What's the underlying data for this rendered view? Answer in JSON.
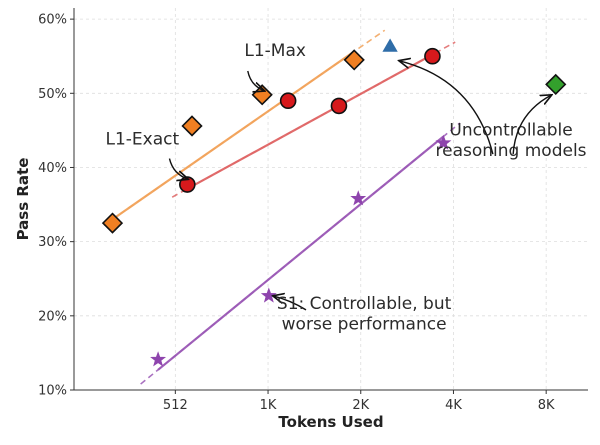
{
  "chart_data": {
    "type": "scatter",
    "xlabel": "Tokens Used",
    "ylabel": "Pass Rate",
    "x_scale": "log2",
    "xlim": [
      240,
      11200
    ],
    "ylim": [
      10,
      61.5
    ],
    "x_ticks": [
      {
        "value": 512,
        "label": "512"
      },
      {
        "value": 1024,
        "label": "1K"
      },
      {
        "value": 2048,
        "label": "2K"
      },
      {
        "value": 4096,
        "label": "4K"
      },
      {
        "value": 8192,
        "label": "8K"
      }
    ],
    "y_ticks": [
      {
        "value": 10,
        "label": "10%"
      },
      {
        "value": 20,
        "label": "20%"
      },
      {
        "value": 30,
        "label": "30%"
      },
      {
        "value": 40,
        "label": "40%"
      },
      {
        "value": 50,
        "label": "50%"
      },
      {
        "value": 60,
        "label": "60%"
      }
    ],
    "grid": true,
    "series": [
      {
        "name": "L1-Max",
        "marker": "diamond",
        "color": "#f07f22",
        "line_color": "#f2a35a",
        "points": [
          [
            320,
            32.5
          ],
          [
            580,
            45.6
          ],
          [
            980,
            49.8
          ],
          [
            1950,
            54.5
          ]
        ],
        "fit": [
          [
            300,
            32.2
          ],
          [
            2450,
            58.5
          ]
        ]
      },
      {
        "name": "L1-Exact",
        "marker": "circle",
        "color": "#d7191c",
        "line_color": "#e06666",
        "points": [
          [
            560,
            37.7
          ],
          [
            1190,
            49.0
          ],
          [
            1740,
            48.3
          ],
          [
            3500,
            55.0
          ]
        ],
        "fit": [
          [
            500,
            36.0
          ],
          [
            4150,
            56.9
          ]
        ]
      },
      {
        "name": "S1",
        "marker": "star",
        "color": "#8e44ad",
        "line_color": "#9b59b6",
        "points": [
          [
            450,
            14.1
          ],
          [
            1030,
            22.7
          ],
          [
            2010,
            35.8
          ],
          [
            3800,
            43.3
          ]
        ],
        "fit": [
          [
            395,
            10.8
          ],
          [
            4300,
            46.0
          ]
        ]
      },
      {
        "marker": "triangle",
        "color": "#2f6da8",
        "points": [
          [
            2550,
            56.3
          ]
        ]
      },
      {
        "marker": "diamond",
        "color": "#33a02c",
        "points": [
          [
            8800,
            51.2
          ]
        ]
      }
    ],
    "annotations": [
      {
        "lines": [
          "L1-Max"
        ],
        "text_at": [
          1080,
          55.0
        ],
        "arrow_from": [
          880,
          53.0
        ],
        "arrow_to": [
          1000,
          50.3
        ],
        "rad": -0.28
      },
      {
        "lines": [
          "L1-Exact"
        ],
        "text_at": [
          400,
          43.1
        ],
        "arrow_from": [
          490,
          41.2
        ],
        "arrow_to": [
          565,
          38.4
        ],
        "rad": -0.28
      },
      {
        "lines": [
          "S1: Controllable, but",
          "worse performance"
        ],
        "text_at": [
          2100,
          20.9
        ],
        "arrow_from": [
          1360,
          20.8
        ],
        "arrow_to": [
          1060,
          22.7
        ],
        "rad": -0.08
      },
      {
        "lines": [
          "Uncontrollable",
          "reasoning models"
        ],
        "text_at": [
          6300,
          44.3
        ],
        "arrow_from": [
          5500,
          41.8
        ],
        "arrow_to": [
          2720,
          54.4
        ],
        "rad": -0.3
      },
      {
        "arrow_from": [
          6400,
          41.8
        ],
        "arrow_to": [
          8550,
          49.8
        ],
        "rad": 0.28
      }
    ]
  }
}
